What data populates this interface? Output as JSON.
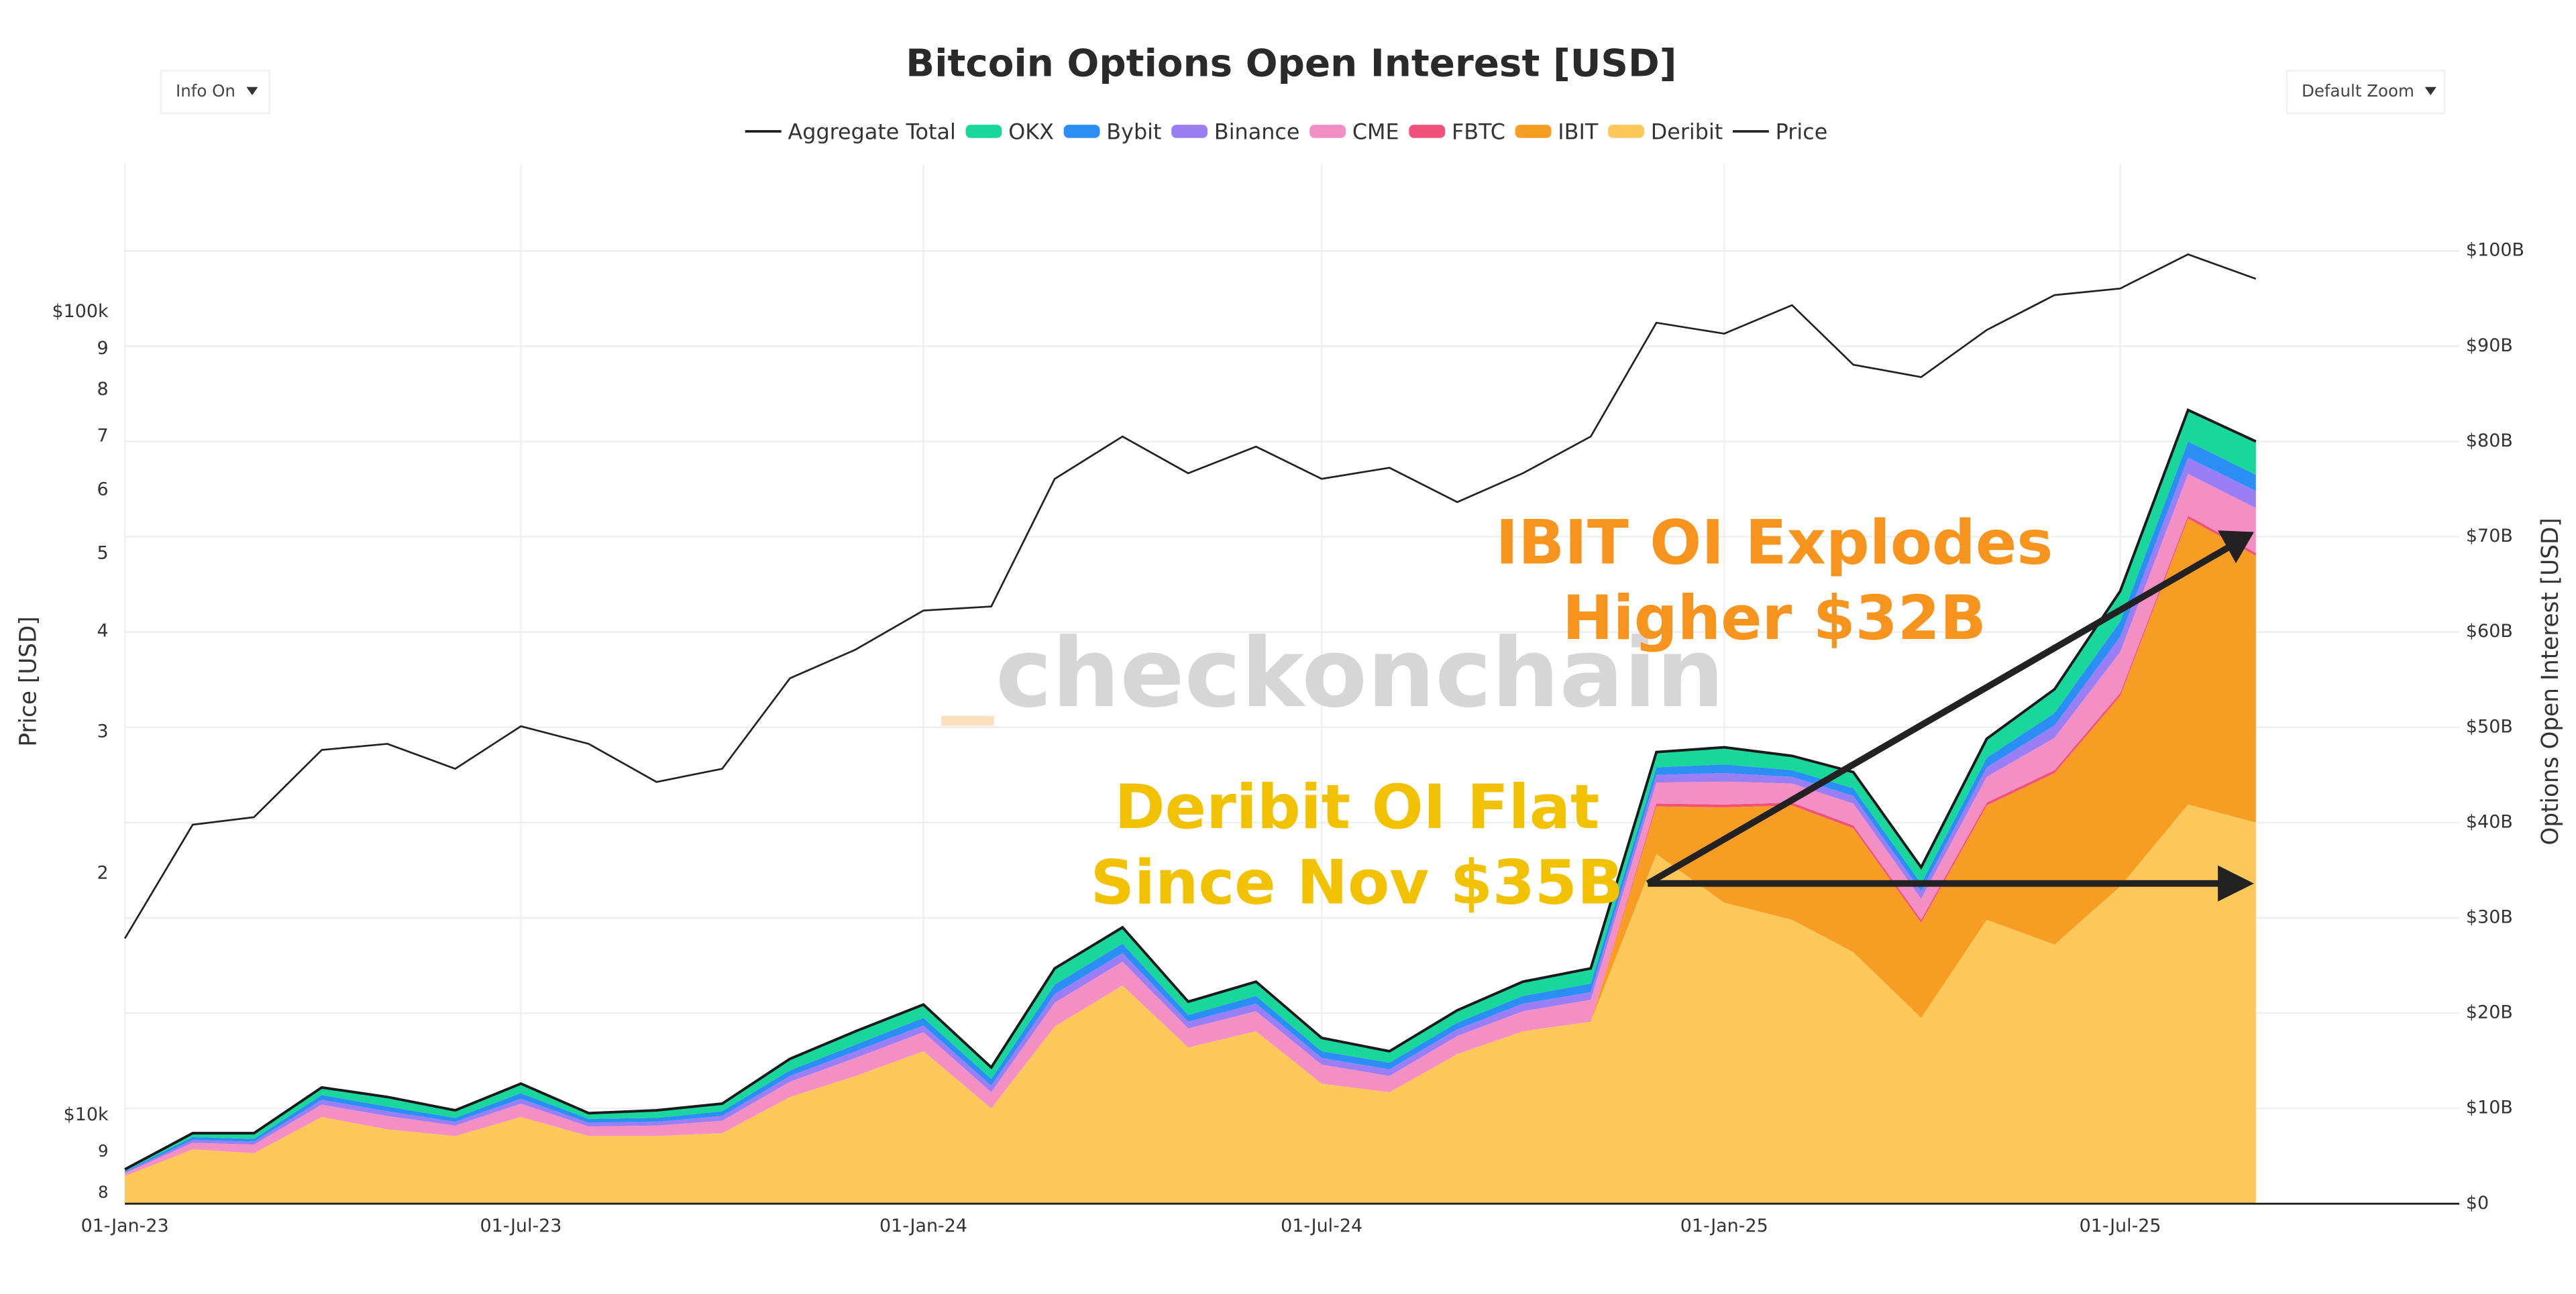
{
  "chart_data": {
    "type": "area",
    "stacked": true,
    "title": "Bitcoin Options Open Interest [USD]",
    "controls": {
      "info": "Info On",
      "zoom": "Default Zoom"
    },
    "ylabel": "Price [USD]",
    "y2label": "Options Open Interest [USD]",
    "ylog": true,
    "grid": true,
    "watermark": "checkonchain",
    "annotations": [
      {
        "lines": [
          "IBIT OI Explodes",
          "Higher $32B"
        ],
        "color": "#f7941d"
      },
      {
        "lines": [
          "Deribit OI Flat",
          "Since Nov $35B"
        ],
        "color": "#f2c200"
      }
    ],
    "x": [
      "2023-01-01",
      "2023-02-01",
      "2023-03-01",
      "2023-04-01",
      "2023-05-01",
      "2023-06-01",
      "2023-07-01",
      "2023-08-01",
      "2023-09-01",
      "2023-10-01",
      "2023-11-01",
      "2023-12-01",
      "2024-01-01",
      "2024-02-01",
      "2024-03-01",
      "2024-04-01",
      "2024-05-01",
      "2024-06-01",
      "2024-07-01",
      "2024-08-01",
      "2024-09-01",
      "2024-10-01",
      "2024-11-01",
      "2024-12-01",
      "2025-01-01",
      "2025-02-01",
      "2025-03-01",
      "2025-04-01",
      "2025-05-01",
      "2025-06-01",
      "2025-07-01",
      "2025-08-01",
      "2025-09-01"
    ],
    "xlim": [
      "2023-01-01",
      "2025-12-03"
    ],
    "xticks": [
      {
        "value": "2023-01-01",
        "label": "01-Jan-23"
      },
      {
        "value": "2023-07-01",
        "label": "01-Jul-23"
      },
      {
        "value": "2024-01-01",
        "label": "01-Jan-24"
      },
      {
        "value": "2024-07-01",
        "label": "01-Jul-24"
      },
      {
        "value": "2025-01-01",
        "label": "01-Jan-25"
      },
      {
        "value": "2025-07-01",
        "label": "01-Jul-25"
      }
    ],
    "ylim": [
      7.76,
      152.8
    ],
    "yticks": [
      8,
      9,
      {
        "value": 10,
        "label": "$10k"
      },
      {
        "value": 20,
        "label": "2"
      },
      {
        "value": 30,
        "label": "3"
      },
      {
        "value": 40,
        "label": "4"
      },
      {
        "value": 50,
        "label": "5"
      },
      {
        "value": 60,
        "label": "6"
      },
      {
        "value": 70,
        "label": "7"
      },
      {
        "value": 80,
        "label": "8"
      },
      {
        "value": 90,
        "label": "9"
      },
      {
        "value": 100,
        "label": "$100k"
      }
    ],
    "y2lim": [
      0,
      109.1
    ],
    "y2ticks": [
      {
        "value": 0,
        "label": "$0"
      },
      {
        "value": 10,
        "label": "$10B"
      },
      {
        "value": 20,
        "label": "$20B"
      },
      {
        "value": 30,
        "label": "$30B"
      },
      {
        "value": 40,
        "label": "$40B"
      },
      {
        "value": 50,
        "label": "$50B"
      },
      {
        "value": 60,
        "label": "$60B"
      },
      {
        "value": 70,
        "label": "$70B"
      },
      {
        "value": 80,
        "label": "$80B"
      },
      {
        "value": 90,
        "label": "$90B"
      },
      {
        "value": 100,
        "label": "$100B"
      }
    ],
    "series": [
      {
        "name": "Aggregate Total",
        "type": "line",
        "axis": "y2",
        "color": "#1a1a1a",
        "values": [
          3.6,
          7.4,
          7.4,
          12.2,
          11.2,
          9.8,
          12.6,
          9.5,
          9.8,
          10.5,
          15.2,
          18.1,
          20.9,
          14.3,
          24.7,
          29,
          21.2,
          23.3,
          17.4,
          16,
          20.3,
          23.3,
          24.7,
          47.4,
          47.9,
          47,
          45.3,
          35.3,
          48.8,
          54,
          64.3,
          83.3,
          80
        ]
      },
      {
        "name": "OKX",
        "type": "area",
        "axis": "y2",
        "color": "#19d79a",
        "values": [
          0.2,
          0.4,
          0.6,
          0.8,
          1.0,
          0.8,
          1.0,
          0.6,
          0.8,
          0.8,
          1.2,
          1.4,
          1.4,
          1.2,
          1.7,
          1.7,
          1.4,
          1.5,
          1.4,
          1.2,
          1.3,
          1.5,
          1.6,
          1.6,
          1.8,
          1.5,
          1.7,
          1.7,
          2.0,
          2.5,
          3.2,
          3.3,
          3.5
        ]
      },
      {
        "name": "Bybit",
        "type": "area",
        "axis": "y2",
        "color": "#2b8ef4",
        "values": [
          0.1,
          0.3,
          0.3,
          0.5,
          0.5,
          0.4,
          0.6,
          0.4,
          0.4,
          0.5,
          0.6,
          0.7,
          0.8,
          0.7,
          1.0,
          1.0,
          0.7,
          0.8,
          0.7,
          0.7,
          0.7,
          0.8,
          0.9,
          0.8,
          0.9,
          0.7,
          0.8,
          0.8,
          1.0,
          1.3,
          1.6,
          1.7,
          1.7
        ]
      },
      {
        "name": "Binance",
        "type": "area",
        "axis": "y2",
        "color": "#9a7ef5",
        "values": [
          0.1,
          0.3,
          0.3,
          0.5,
          0.5,
          0.4,
          0.5,
          0.4,
          0.4,
          0.5,
          0.6,
          0.7,
          0.7,
          0.7,
          0.9,
          0.9,
          0.7,
          0.8,
          0.7,
          0.7,
          0.7,
          0.8,
          0.8,
          0.8,
          0.9,
          0.7,
          0.8,
          0.8,
          1.0,
          1.3,
          1.6,
          1.7,
          1.8
        ]
      },
      {
        "name": "CME",
        "type": "area",
        "axis": "y2",
        "color": "#f48fc4",
        "values": [
          0.3,
          0.7,
          0.9,
          1.3,
          1.4,
          1.1,
          1.4,
          1.0,
          1.1,
          1.3,
          1.6,
          1.9,
          2.0,
          1.7,
          2.5,
          2.5,
          2.0,
          2.1,
          2.0,
          1.7,
          1.9,
          2.1,
          2.3,
          2.2,
          2.4,
          2.0,
          2.3,
          2.2,
          2.7,
          3.4,
          4.3,
          4.4,
          4.7
        ]
      },
      {
        "name": "FBTC",
        "type": "area",
        "axis": "y2",
        "color": "#f2527a",
        "values": [
          0,
          0,
          0,
          0,
          0,
          0,
          0,
          0,
          0,
          0,
          0,
          0,
          0,
          0,
          0,
          0,
          0,
          0,
          0,
          0,
          0,
          0,
          0,
          0.3,
          0.3,
          0.3,
          0.3,
          0.3,
          0.3,
          0.3,
          0.3,
          0.3,
          0.3
        ]
      },
      {
        "name": "IBIT",
        "type": "area",
        "axis": "y2",
        "color": "#f79d23",
        "values": [
          0,
          0,
          0,
          0,
          0,
          0,
          0,
          0,
          0,
          0,
          0,
          0,
          0,
          0,
          0,
          0,
          0,
          0,
          0,
          0,
          0,
          0,
          0,
          5,
          10,
          12,
          13,
          10,
          12,
          18,
          20,
          30,
          28
        ]
      },
      {
        "name": "Deribit",
        "type": "area",
        "axis": "y2",
        "color": "#fdc85a",
        "values": [
          2.9,
          5.7,
          5.3,
          9.1,
          7.8,
          7.1,
          9.1,
          7.1,
          7.1,
          7.4,
          11.2,
          13.4,
          16,
          10,
          18.6,
          22.9,
          16.4,
          18.1,
          12.6,
          11.7,
          15.7,
          18.1,
          19.1,
          36.7,
          31.6,
          29.8,
          26.4,
          19.5,
          29.8,
          27.2,
          33.3,
          41.9,
          40
        ]
      },
      {
        "name": "Price",
        "type": "line",
        "axis": "y",
        "color": "#222222",
        "values": [
          16.6,
          23,
          23.5,
          28.5,
          29,
          27,
          30.5,
          29,
          26,
          27,
          35,
          38,
          42.5,
          43,
          62,
          70,
          63,
          68,
          62,
          64,
          58,
          63,
          70,
          97,
          94,
          102,
          86,
          83,
          95,
          105,
          107,
          118,
          110
        ]
      }
    ]
  }
}
